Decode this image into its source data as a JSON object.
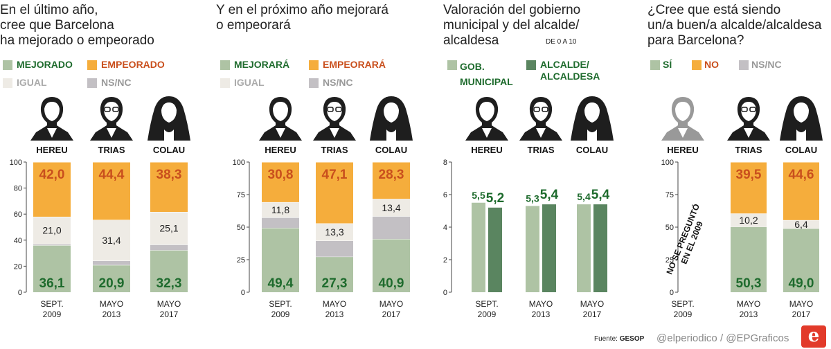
{
  "colors": {
    "green": "#aec3a4",
    "orange": "#f5ad3c",
    "light": "#eeebe5",
    "gray": "#c3c0c4",
    "dark_green": "#5a8560",
    "green_text": "#1e6b2d",
    "orange_text": "#c94f1d"
  },
  "faces": {
    "hereu": "HEREU",
    "trias": "TRIAS",
    "colau": "COLAU"
  },
  "footer": {
    "source_label": "Fuente:",
    "source": "GESOP",
    "handles": "@elperiodico / @EPGraficos",
    "logo": "e"
  },
  "chart_data": [
    {
      "type": "bar",
      "stacked": true,
      "title": [
        "En el último año,",
        "cree que Barcelona",
        "ha mejorado o empeorado"
      ],
      "legend": [
        {
          "label": "MEJORADO",
          "key": "green",
          "text": "green_text"
        },
        {
          "label": "EMPEORADO",
          "key": "orange",
          "text": "orange_text"
        },
        {
          "label": "IGUAL",
          "key": "light",
          "text": "gray"
        },
        {
          "label": "NS/NC",
          "key": "gray",
          "text": "gray"
        }
      ],
      "ylim": [
        0,
        100
      ],
      "yticks": [
        0,
        20,
        40,
        60,
        80,
        100
      ],
      "categories": [
        [
          "SEPT.",
          "2009"
        ],
        [
          "MAYO",
          "2013"
        ],
        [
          "MAYO",
          "2017"
        ]
      ],
      "series": [
        {
          "name": "MEJORADO",
          "key": "green",
          "values": [
            36.1,
            20.9,
            32.3
          ],
          "labels": [
            "36,1",
            "20,9",
            "32,3"
          ],
          "label_style": "big_green"
        },
        {
          "name": "NS/NC",
          "key": "gray",
          "values": [
            0.9,
            3.3,
            4.3
          ],
          "labels": [
            null,
            null,
            null
          ]
        },
        {
          "name": "IGUAL",
          "key": "light",
          "values": [
            21.0,
            31.4,
            25.1
          ],
          "labels": [
            "21,0",
            "31,4",
            "25,1"
          ],
          "label_style": "small"
        },
        {
          "name": "EMPEORADO",
          "key": "orange",
          "values": [
            42.0,
            44.4,
            38.3
          ],
          "labels": [
            "42,0",
            "44,4",
            "38,3"
          ],
          "label_style": "big_orange"
        }
      ]
    },
    {
      "type": "bar",
      "stacked": true,
      "title": [
        "Y en el próximo año mejorará",
        "o empeorará"
      ],
      "legend": [
        {
          "label": "MEJORARÁ",
          "key": "green",
          "text": "green_text"
        },
        {
          "label": "EMPEORARÁ",
          "key": "orange",
          "text": "orange_text"
        },
        {
          "label": "IGUAL",
          "key": "light",
          "text": "gray"
        },
        {
          "label": "NS/NC",
          "key": "gray",
          "text": "gray"
        }
      ],
      "ylim": [
        0,
        100
      ],
      "yticks": [
        0,
        25,
        50,
        75,
        100
      ],
      "categories": [
        [
          "SEPT.",
          "2009"
        ],
        [
          "MAYO",
          "2013"
        ],
        [
          "MAYO",
          "2017"
        ]
      ],
      "series": [
        {
          "name": "MEJORARÁ",
          "key": "green",
          "values": [
            49.4,
            27.3,
            40.9
          ],
          "labels": [
            "49,4",
            "27,3",
            "40,9"
          ],
          "label_style": "big_green"
        },
        {
          "name": "NS/NC",
          "key": "gray",
          "values": [
            8.0,
            12.3,
            17.4
          ],
          "labels": [
            null,
            null,
            null
          ]
        },
        {
          "name": "IGUAL",
          "key": "light",
          "values": [
            11.8,
            13.3,
            13.4
          ],
          "labels": [
            "11,8",
            "13,3",
            "13,4"
          ],
          "label_style": "small"
        },
        {
          "name": "EMPEORARÁ",
          "key": "orange",
          "values": [
            30.8,
            47.1,
            28.3
          ],
          "labels": [
            "30,8",
            "47,1",
            "28,3"
          ],
          "label_style": "big_orange"
        }
      ]
    },
    {
      "type": "bar",
      "grouped": true,
      "title": [
        "Valoración del gobierno",
        "municipal y del alcalde/",
        "alcaldesa"
      ],
      "scale_note": "DE 0 A 10",
      "legend": [
        {
          "label": "GOB. MUNICIPAL",
          "key": "green",
          "text": "green_text"
        },
        {
          "label": "ALCALDE/ ALCALDESA",
          "key": "dark_green",
          "text": "green_text"
        }
      ],
      "ylim": [
        0,
        8
      ],
      "yticks": [
        0,
        2,
        4,
        6,
        8
      ],
      "categories": [
        [
          "SEPT.",
          "2009"
        ],
        [
          "MAYO",
          "2013"
        ],
        [
          "MAYO",
          "2017"
        ]
      ],
      "series": [
        {
          "name": "GOB. MUNICIPAL",
          "key": "green",
          "values": [
            5.5,
            5.3,
            5.4
          ],
          "labels": [
            "5,5",
            "5,3",
            "5,4"
          ]
        },
        {
          "name": "ALCALDE/ALCALDESA",
          "key": "dark_green",
          "values": [
            5.2,
            5.4,
            5.4
          ],
          "labels": [
            "5,2",
            "5,4",
            "5,4"
          ]
        }
      ]
    },
    {
      "type": "bar",
      "stacked": true,
      "title": [
        "¿Cree que está siendo",
        "un/a buen/a alcalde/alcaldesa",
        "para Barcelona?"
      ],
      "legend": [
        {
          "label": "SÍ",
          "key": "green",
          "text": "green_text"
        },
        {
          "label": "NO",
          "key": "orange",
          "text": "orange_text"
        },
        {
          "label": "NS/NC",
          "key": "gray",
          "text": "gray"
        }
      ],
      "ylim": [
        0,
        100
      ],
      "yticks": [
        0,
        25,
        50,
        75,
        100
      ],
      "categories": [
        [
          "SEPT.",
          "2009"
        ],
        [
          "MAYO",
          "2013"
        ],
        [
          "MAYO",
          "2017"
        ]
      ],
      "annotation": [
        "NO SE PREGUNTÓ",
        "EN EL 2009"
      ],
      "series": [
        {
          "name": "SÍ",
          "key": "green",
          "values": [
            null,
            50.3,
            49.0
          ],
          "labels": [
            null,
            "50,3",
            "49,0"
          ],
          "label_style": "big_green"
        },
        {
          "name": "NS/NC",
          "key": "light",
          "values": [
            null,
            10.2,
            6.4
          ],
          "labels": [
            null,
            "10,2",
            "6,4"
          ],
          "label_style": "small"
        },
        {
          "name": "NO",
          "key": "orange",
          "values": [
            null,
            39.5,
            44.6
          ],
          "labels": [
            null,
            "39,5",
            "44,6"
          ],
          "label_style": "big_orange"
        }
      ]
    }
  ]
}
